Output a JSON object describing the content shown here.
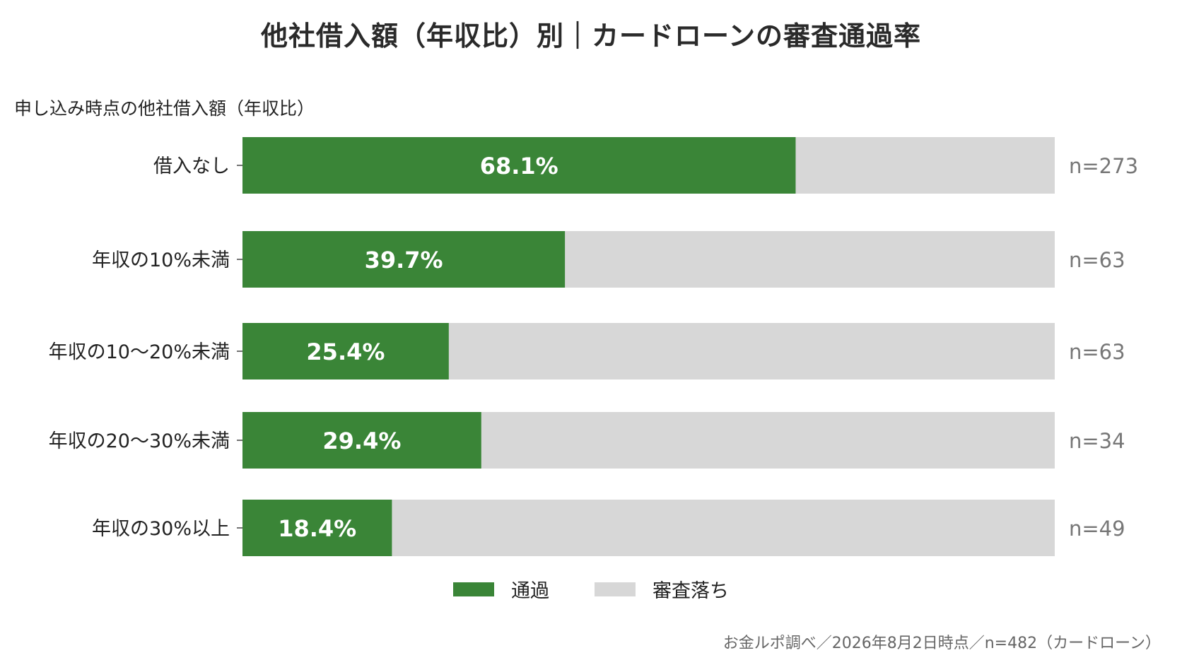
{
  "title": "他社借入額（年収比）別｜カードローンの審査通過率",
  "chart_data": {
    "type": "bar",
    "orientation": "horizontal",
    "stacked": true,
    "ylabel": "申し込み時点の他社借入額（年収比）",
    "categories": [
      "借入なし",
      "年収の10%未満",
      "年収の10〜20%未満",
      "年収の20〜30%未満",
      "年収の30%以上"
    ],
    "series": [
      {
        "name": "通過",
        "values": [
          68.1,
          39.7,
          25.4,
          29.4,
          18.4
        ],
        "color": "#3a8537"
      },
      {
        "name": "審査落ち",
        "values": [
          31.9,
          60.3,
          74.6,
          70.6,
          81.6
        ],
        "color": "#d7d7d7"
      }
    ],
    "value_labels": [
      "68.1%",
      "39.7%",
      "25.4%",
      "29.4%",
      "18.4%"
    ],
    "sample_labels": [
      "n=273",
      "n=63",
      "n=63",
      "n=34",
      "n=49"
    ],
    "xlim": [
      0,
      100
    ],
    "grid": false,
    "legend_position": "bottom"
  },
  "source": "お金ルポ調べ／2026年8月2日時点／n=482（カードローン）"
}
